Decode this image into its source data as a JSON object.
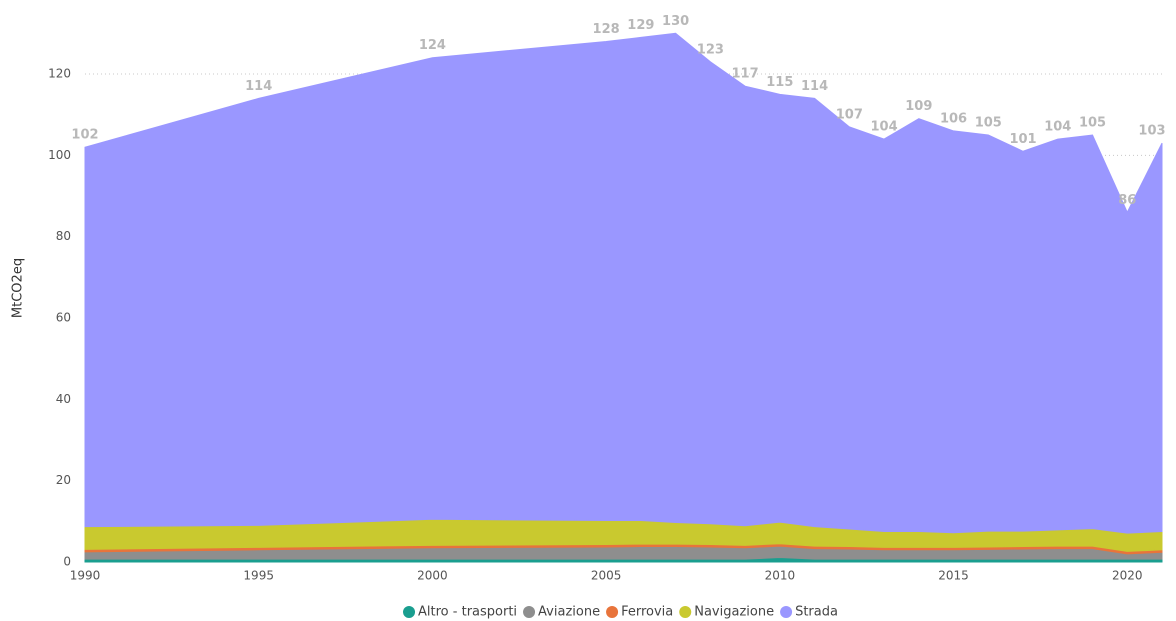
{
  "chart_data": {
    "type": "stacked_area",
    "y_label": "MtCO2eq",
    "x": [
      1990,
      1995,
      2000,
      2005,
      2006,
      2007,
      2008,
      2009,
      2010,
      2011,
      2012,
      2013,
      2014,
      2015,
      2016,
      2017,
      2018,
      2019,
      2020,
      2021
    ],
    "xlim": [
      1990,
      2021
    ],
    "xticks": [
      1990,
      1995,
      2000,
      2005,
      2010,
      2015,
      2020
    ],
    "ylim": [
      0,
      135
    ],
    "yticks": [
      0,
      20,
      40,
      60,
      80,
      100,
      120
    ],
    "grid": true,
    "legend": "bottom",
    "totals": [
      102,
      114,
      124,
      128,
      129,
      130,
      123,
      117,
      115,
      114,
      107,
      104,
      109,
      106,
      105,
      101,
      104,
      105,
      86,
      103
    ],
    "series": [
      {
        "name": "Altro - trasporti",
        "color": "#1a9e8f",
        "values": [
          0.7,
          0.7,
          0.7,
          0.7,
          0.7,
          0.7,
          0.7,
          0.7,
          1.1,
          0.7,
          0.7,
          0.7,
          0.7,
          0.7,
          0.7,
          0.7,
          0.7,
          0.7,
          0.7,
          0.7
        ]
      },
      {
        "name": "Aviazione",
        "color": "#8e8e8e",
        "values": [
          1.8,
          2.3,
          2.8,
          3.0,
          3.1,
          3.1,
          3.0,
          2.8,
          2.8,
          2.6,
          2.5,
          2.3,
          2.3,
          2.3,
          2.4,
          2.5,
          2.6,
          2.6,
          1.3,
          1.7
        ]
      },
      {
        "name": "Ferrovia",
        "color": "#e8743b",
        "values": [
          0.6,
          0.6,
          0.6,
          0.6,
          0.6,
          0.6,
          0.6,
          0.6,
          0.6,
          0.6,
          0.6,
          0.6,
          0.6,
          0.6,
          0.6,
          0.6,
          0.6,
          0.6,
          0.6,
          0.6
        ]
      },
      {
        "name": "Navigazione",
        "color": "#c9c92f",
        "values": [
          5.6,
          5.4,
          6.4,
          5.9,
          5.8,
          5.3,
          5.1,
          4.8,
          5.3,
          4.8,
          4.3,
          3.9,
          3.9,
          3.6,
          3.9,
          3.8,
          4.0,
          4.3,
          4.5,
          4.5
        ]
      },
      {
        "name": "Strada",
        "color": "#9a97ff",
        "values": [
          93.3,
          105.0,
          113.5,
          117.8,
          118.8,
          120.3,
          113.6,
          108.1,
          105.2,
          105.3,
          98.9,
          96.5,
          101.5,
          98.8,
          97.4,
          93.4,
          96.1,
          96.8,
          78.9,
          95.5
        ]
      }
    ]
  }
}
